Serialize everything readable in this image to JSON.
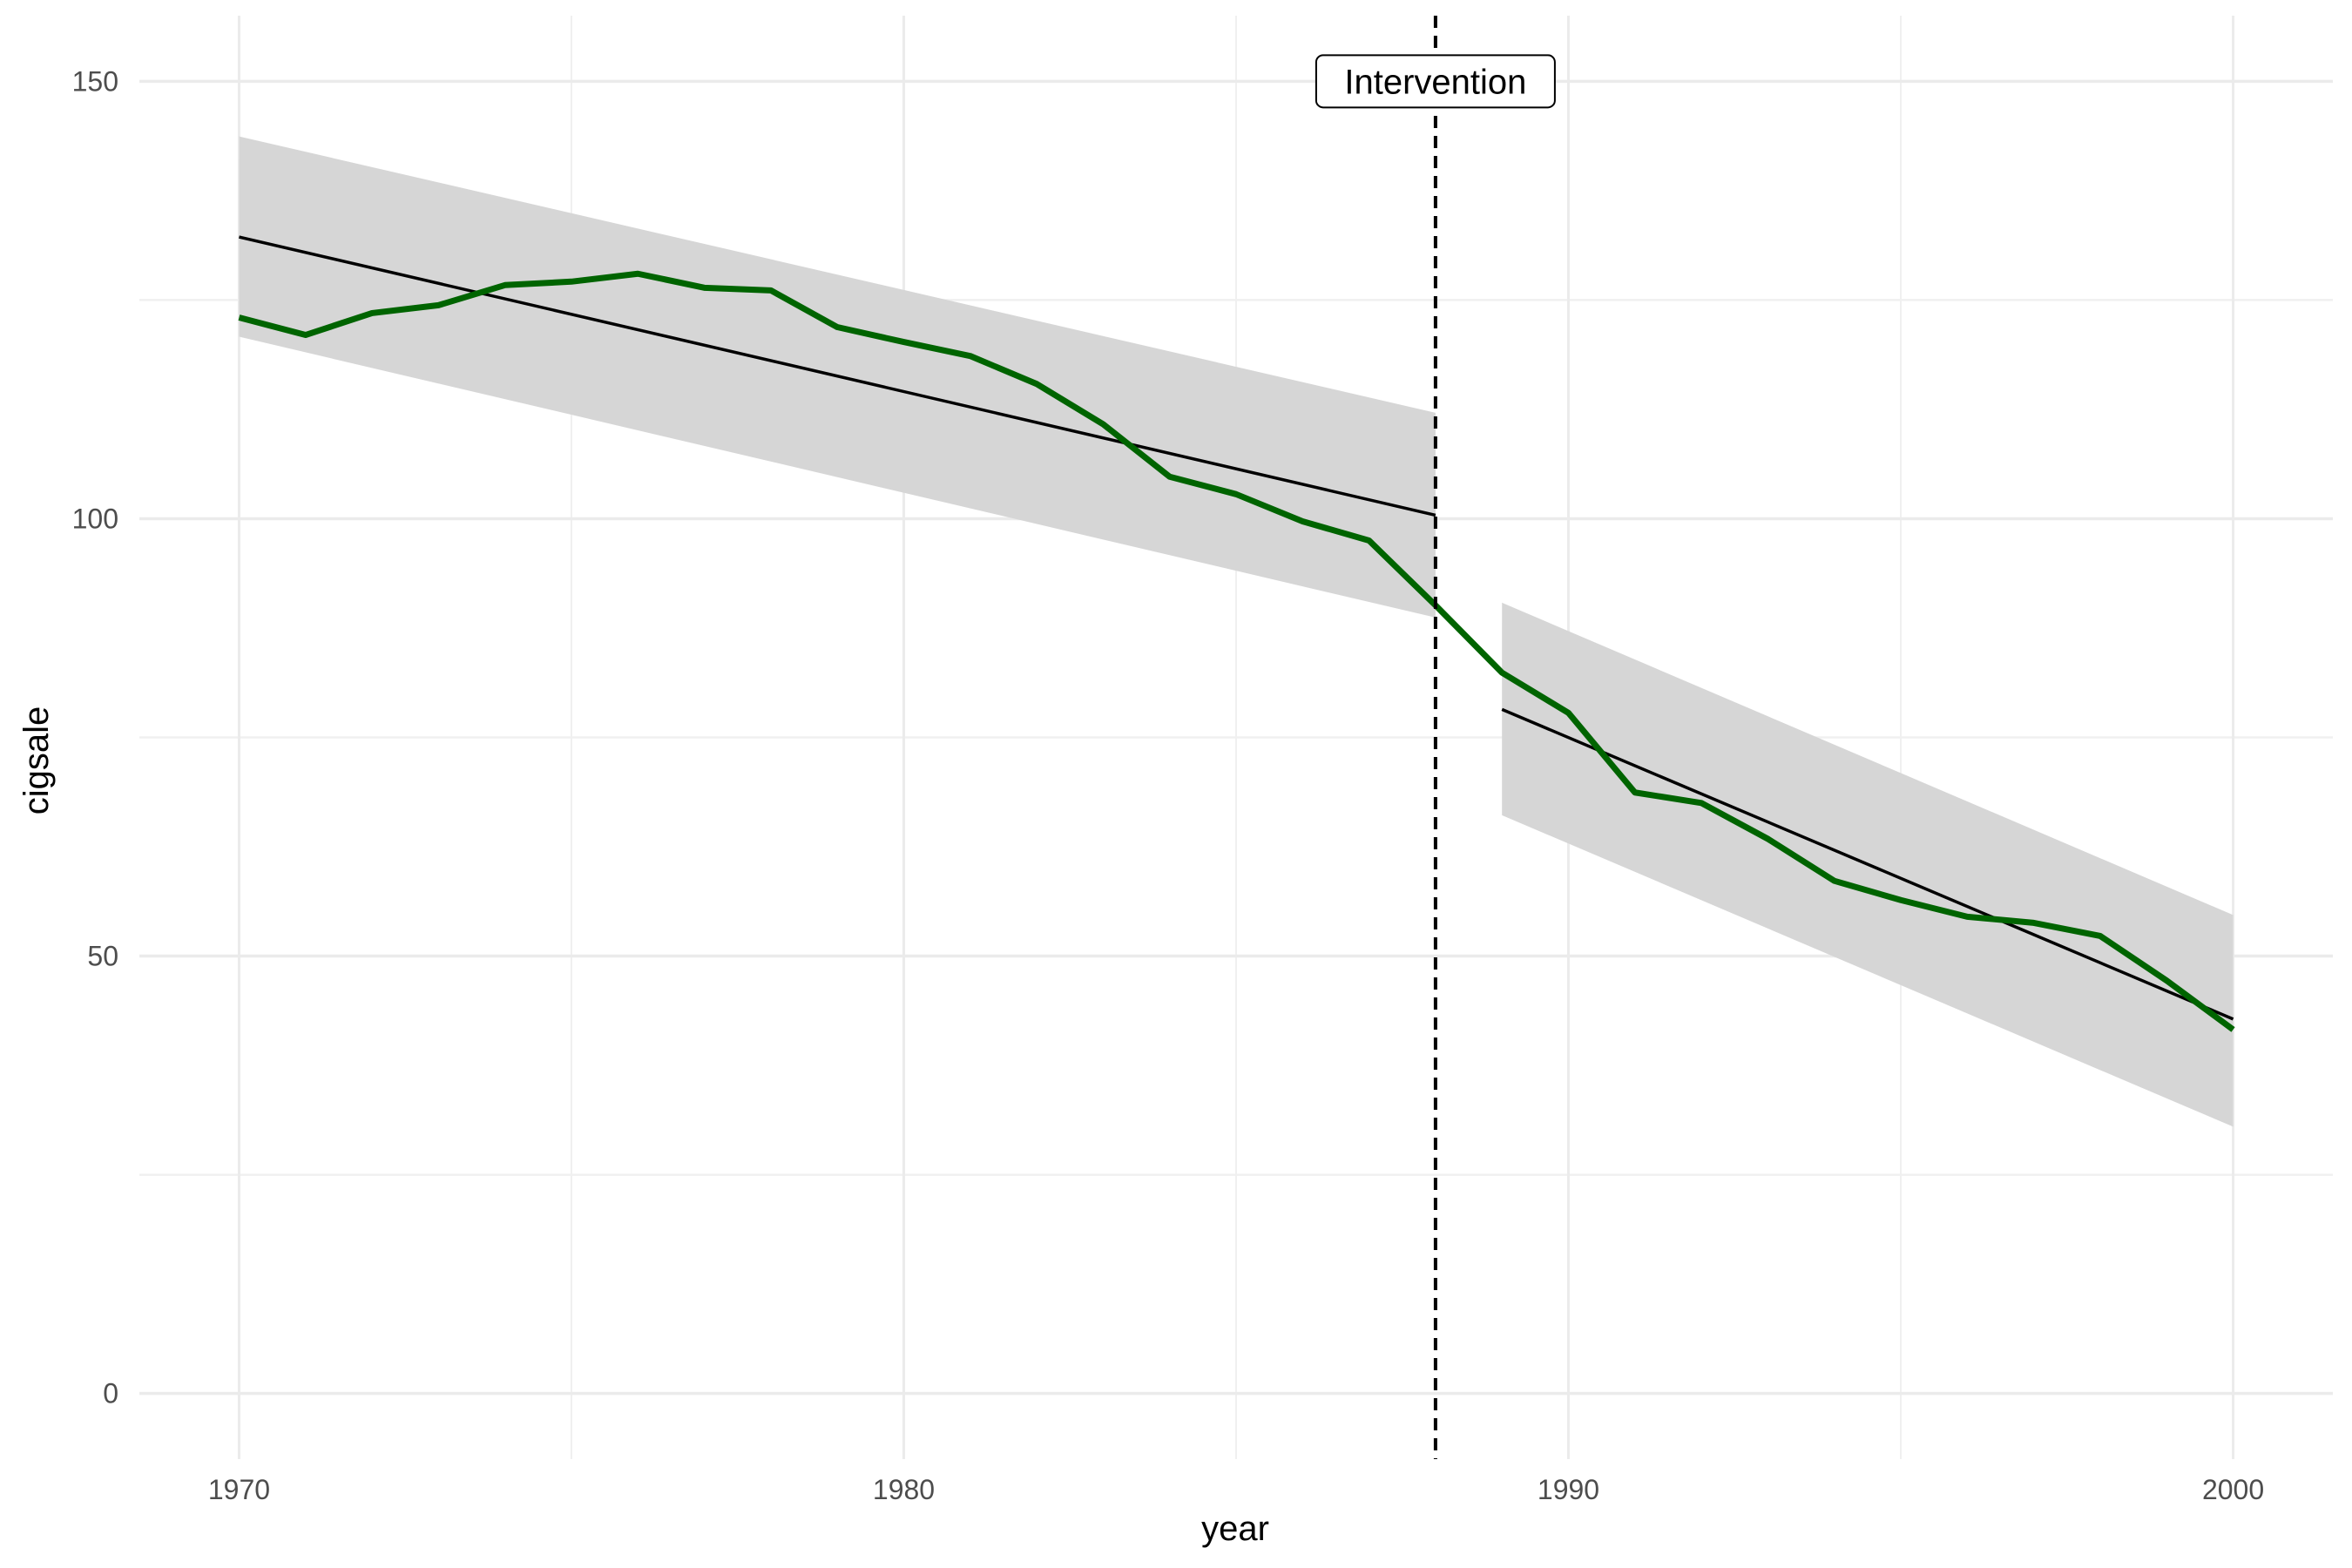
{
  "chart_data": {
    "type": "line",
    "xlabel": "year",
    "ylabel": "cigsale",
    "xlim": [
      1968.5,
      2001.5
    ],
    "ylim": [
      -7.5,
      157.5
    ],
    "x_ticks": [
      1970,
      1980,
      1990,
      2000
    ],
    "y_ticks": [
      0,
      50,
      100,
      150
    ],
    "grid": true,
    "x": [
      1970,
      1971,
      1972,
      1973,
      1974,
      1975,
      1976,
      1977,
      1978,
      1979,
      1980,
      1981,
      1982,
      1983,
      1984,
      1985,
      1986,
      1987,
      1988,
      1989,
      1990,
      1991,
      1992,
      1993,
      1994,
      1995,
      1996,
      1997,
      1998,
      1999,
      2000
    ],
    "series": [
      {
        "color": "#006400",
        "values": [
          123.0,
          121.0,
          123.5,
          124.4,
          126.7,
          127.1,
          128.0,
          126.4,
          126.1,
          121.9,
          120.2,
          118.6,
          115.4,
          110.8,
          104.8,
          102.8,
          99.7,
          97.5,
          90.1,
          82.4,
          77.8,
          68.7,
          67.5,
          63.4,
          58.6,
          56.4,
          54.5,
          53.8,
          52.3,
          47.2,
          41.6
        ]
      }
    ],
    "trend_segments": [
      {
        "x": [
          1970,
          1988
        ],
        "fit": [
          132.2,
          100.4
        ],
        "lower": [
          120.8,
          88.7
        ],
        "upper": [
          143.7,
          112.1
        ],
        "band_color": "#d6d6d6",
        "line_color": "#000000"
      },
      {
        "x": [
          1989,
          2000
        ],
        "fit": [
          78.2,
          42.8
        ],
        "lower": [
          66.1,
          30.5
        ],
        "upper": [
          90.4,
          54.7
        ],
        "band_color": "#d6d6d6",
        "line_color": "#000000"
      }
    ],
    "annotations": [
      {
        "type": "vline",
        "x": 1988,
        "linestyle": "dashed",
        "color": "#000000",
        "label": "Intervention",
        "label_y": 150
      }
    ]
  }
}
